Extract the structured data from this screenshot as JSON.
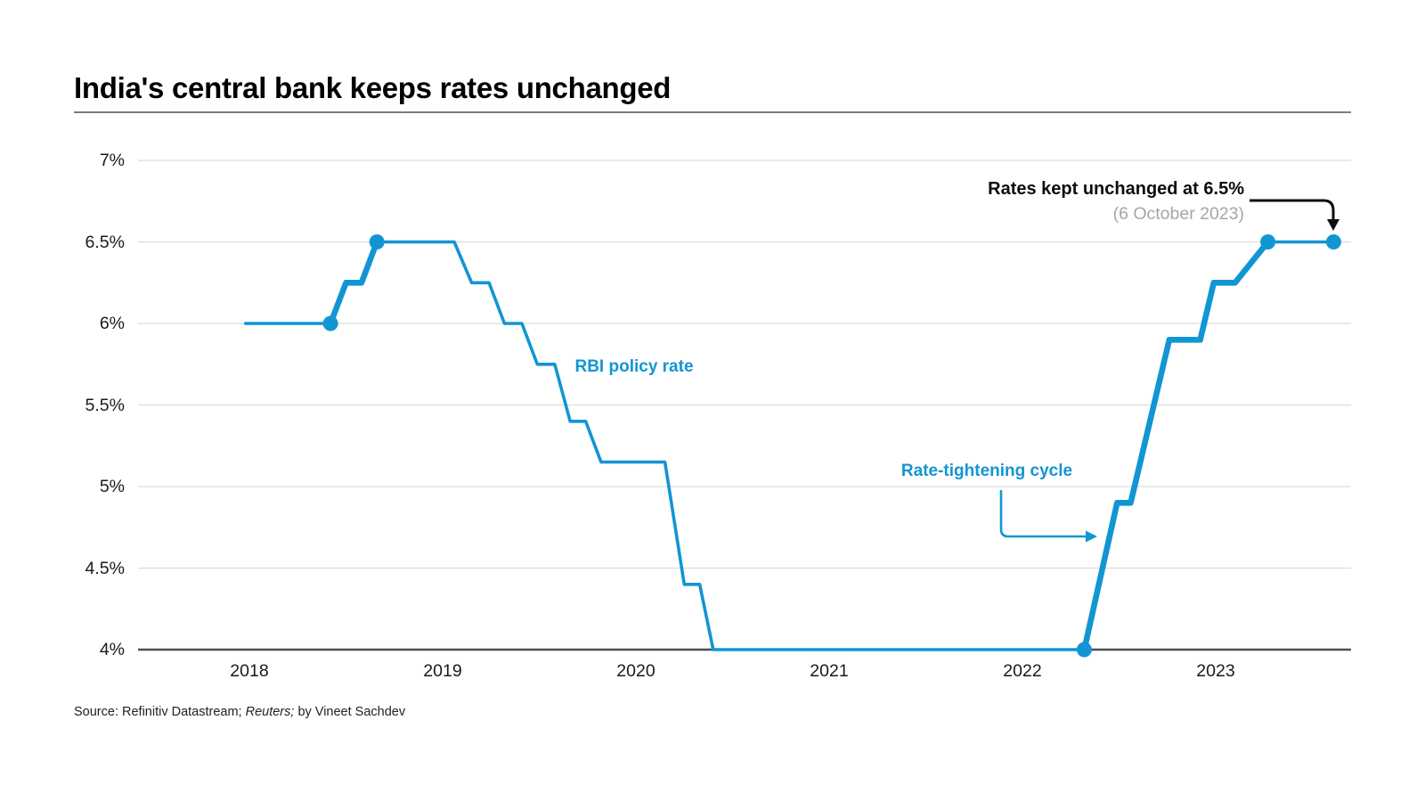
{
  "title": "India's central bank keeps rates unchanged",
  "labels": {
    "series": "RBI policy rate",
    "cycle": "Rate-tightening cycle"
  },
  "annotation": {
    "line1": "Rates kept unchanged at 6.5%",
    "line2": "(6 October 2023)"
  },
  "source": {
    "prefix": "Source: Refinitiv Datastream; ",
    "italic": "Reuters;",
    "suffix": " by Vineet Sachdev"
  },
  "colors": {
    "line": "#1295d3",
    "dot": "#1295d3",
    "blue_label": "#1295d3",
    "gridline": "#dcdcdc",
    "axis": "#4f4f51",
    "title_rule": "#7d7d7d",
    "annotation_gray": "#a6a6a6",
    "black": "#0d0d0d"
  },
  "chart_data": {
    "type": "line",
    "title": "India's central bank keeps rates unchanged",
    "xlabel": "",
    "ylabel": "RBI policy rate (%)",
    "unit": "%",
    "xlim": [
      2017.9,
      2024.0
    ],
    "ylim": [
      4,
      7
    ],
    "grid": true,
    "legend_position": "inline-annotation",
    "yticks": [
      {
        "label": "7%",
        "value": 7
      },
      {
        "label": "6.5%",
        "value": 6.5
      },
      {
        "label": "6%",
        "value": 6
      },
      {
        "label": "5.5%",
        "value": 5.5
      },
      {
        "label": "5%",
        "value": 5
      },
      {
        "label": "4.5%",
        "value": 4.5
      },
      {
        "label": "4%",
        "value": 4
      }
    ],
    "xticks": [
      {
        "label": "2018",
        "value": 2018
      },
      {
        "label": "2019",
        "value": 2019
      },
      {
        "label": "2020",
        "value": 2020
      },
      {
        "label": "2021",
        "value": 2021
      },
      {
        "label": "2022",
        "value": 2022
      },
      {
        "label": "2023",
        "value": 2023
      }
    ],
    "series": [
      {
        "name": "RBI policy rate",
        "points": [
          [
            2017.98,
            6.0
          ],
          [
            2018.42,
            6.0
          ],
          [
            2018.5,
            6.25
          ],
          [
            2018.58,
            6.25
          ],
          [
            2018.66,
            6.5
          ],
          [
            2019.06,
            6.5
          ],
          [
            2019.15,
            6.25
          ],
          [
            2019.24,
            6.25
          ],
          [
            2019.32,
            6.0
          ],
          [
            2019.41,
            6.0
          ],
          [
            2019.49,
            5.75
          ],
          [
            2019.58,
            5.75
          ],
          [
            2019.66,
            5.4
          ],
          [
            2019.74,
            5.4
          ],
          [
            2019.82,
            5.15
          ],
          [
            2020.15,
            5.15
          ],
          [
            2020.25,
            4.4
          ],
          [
            2020.33,
            4.4
          ],
          [
            2020.4,
            4.0
          ],
          [
            2022.32,
            4.0
          ],
          [
            2022.49,
            4.9
          ],
          [
            2022.56,
            4.9
          ],
          [
            2022.76,
            5.9
          ],
          [
            2022.92,
            5.9
          ],
          [
            2022.99,
            6.25
          ],
          [
            2023.1,
            6.25
          ],
          [
            2023.27,
            6.5
          ],
          [
            2023.61,
            6.5
          ]
        ]
      }
    ],
    "dots": [
      [
        2018.42,
        6.0
      ],
      [
        2018.66,
        6.5
      ],
      [
        2022.32,
        4.0
      ],
      [
        2023.27,
        6.5
      ],
      [
        2023.61,
        6.5
      ]
    ],
    "thick_ranges": [
      [
        2018.42,
        2018.66
      ],
      [
        2022.32,
        2023.27
      ]
    ],
    "annotations": [
      {
        "text": "Rates kept unchanged at 6.5%",
        "detail": "(6 October 2023)",
        "points_to": [
          2023.61,
          6.5
        ]
      },
      {
        "text": "Rate-tightening cycle",
        "points_to": "rising segment 2022-2023"
      },
      {
        "text": "RBI policy rate",
        "role": "series label"
      }
    ]
  }
}
